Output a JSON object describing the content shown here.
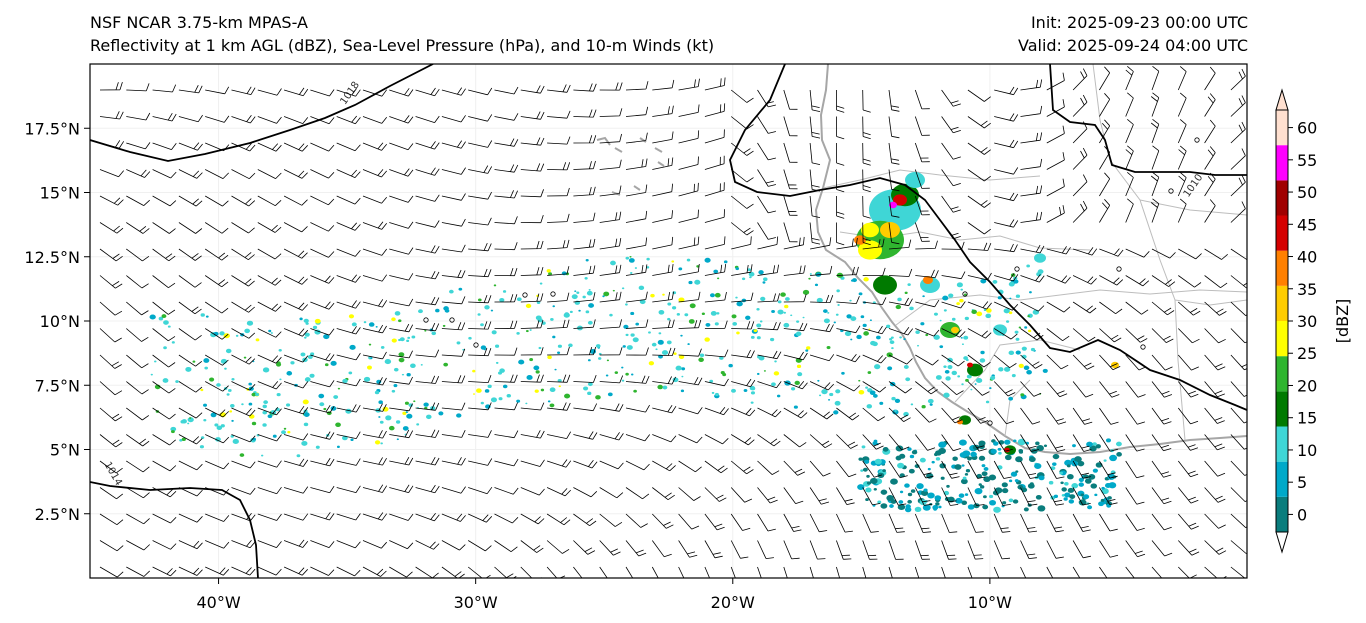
{
  "title": {
    "model": "NSF NCAR 3.75-km MPAS-A",
    "description": "Reflectivity at 1 km AGL (dBZ), Sea-Level Pressure (hPa), and 10-m Winds (kt)",
    "init": "Init: 2025-09-23 00:00 UTC",
    "valid": "Valid: 2025-09-24 04:00 UTC"
  },
  "map": {
    "lon_range": [
      -45,
      0
    ],
    "lat_range": [
      0,
      20
    ],
    "lon_ticks": [
      {
        "value": -40,
        "label": "40°W"
      },
      {
        "value": -30,
        "label": "30°W"
      },
      {
        "value": -20,
        "label": "20°W"
      },
      {
        "value": -10,
        "label": "10°W"
      }
    ],
    "lat_ticks": [
      {
        "value": 2.5,
        "label": "2.5°N"
      },
      {
        "value": 5,
        "label": "5°N"
      },
      {
        "value": 7.5,
        "label": "7.5°N"
      },
      {
        "value": 10,
        "label": "10°N"
      },
      {
        "value": 12.5,
        "label": "12.5°N"
      },
      {
        "value": 15,
        "label": "15°N"
      },
      {
        "value": 17.5,
        "label": "17.5°N"
      }
    ],
    "isobar_labels": [
      {
        "value": "1018",
        "lon": -34.8,
        "lat": 18.8,
        "angle": -55
      },
      {
        "value": "1010",
        "lon": -2.0,
        "lat": 15.2,
        "angle": -55
      },
      {
        "value": "1014",
        "lon": -44.2,
        "lat": 4.0,
        "angle": 60
      }
    ]
  },
  "colorbar": {
    "label": "[dBZ]",
    "ticks": [
      "0",
      "5",
      "10",
      "15",
      "20",
      "25",
      "30",
      "35",
      "40",
      "45",
      "50",
      "55",
      "60"
    ],
    "colors": [
      "#0a7d7d",
      "#00a9c9",
      "#3fd6d6",
      "#007a00",
      "#2fb52f",
      "#ffff00",
      "#ffcc00",
      "#ff8000",
      "#d40000",
      "#a00000",
      "#ff00ff",
      "#ffe0d0"
    ],
    "extend": "both"
  },
  "colors": {
    "coastline": "#a6a6a6",
    "borders": "#bdbdbd",
    "isobar": "#000000",
    "barb": "#000000"
  }
}
